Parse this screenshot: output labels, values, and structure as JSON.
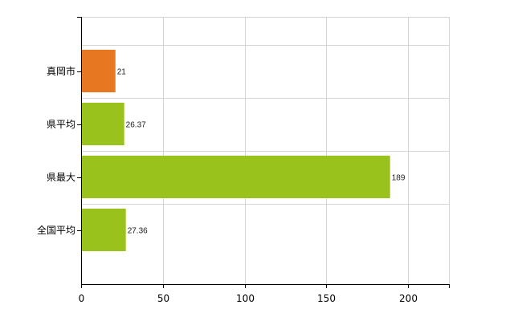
{
  "chart_data": {
    "type": "bar",
    "orientation": "horizontal",
    "categories": [
      "真岡市",
      "県平均",
      "県最大",
      "全国平均"
    ],
    "values": [
      21,
      26.37,
      189,
      27.36
    ],
    "data_labels": [
      "21",
      "26.37",
      "189",
      "27.36"
    ],
    "bar_colors": [
      "#e87722",
      "#99c31c",
      "#99c31c",
      "#99c31c"
    ],
    "xlim": [
      0,
      225
    ],
    "x_ticks": [
      0,
      50,
      100,
      150,
      200
    ],
    "x_tick_labels": [
      "0",
      "50",
      "100",
      "150",
      "200"
    ],
    "grid": true,
    "grid_color": "#d4d4d4",
    "axis_color": "#000000",
    "title": "",
    "xlabel": "",
    "ylabel": ""
  }
}
